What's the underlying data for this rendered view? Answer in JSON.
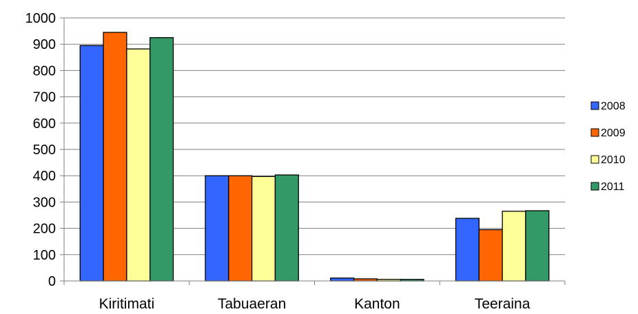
{
  "chart_data": {
    "type": "bar",
    "title": "",
    "xlabel": "",
    "ylabel": "",
    "ylim": [
      0,
      1000
    ],
    "yticks": [
      0,
      100,
      200,
      300,
      400,
      500,
      600,
      700,
      800,
      900,
      1000
    ],
    "grid": true,
    "legend_position": "right",
    "categories": [
      "Kiritimati",
      "Tabuaeran",
      "Kanton",
      "Teeraina"
    ],
    "series": [
      {
        "name": "2008",
        "color": "#3366FF",
        "values": [
          895,
          400,
          11,
          238
        ]
      },
      {
        "name": "2009",
        "color": "#FF6600",
        "values": [
          945,
          400,
          8,
          195
        ]
      },
      {
        "name": "2010",
        "color": "#FFFF99",
        "values": [
          882,
          397,
          6,
          265
        ]
      },
      {
        "name": "2011",
        "color": "#339966",
        "values": [
          925,
          403,
          6,
          267
        ]
      }
    ]
  }
}
